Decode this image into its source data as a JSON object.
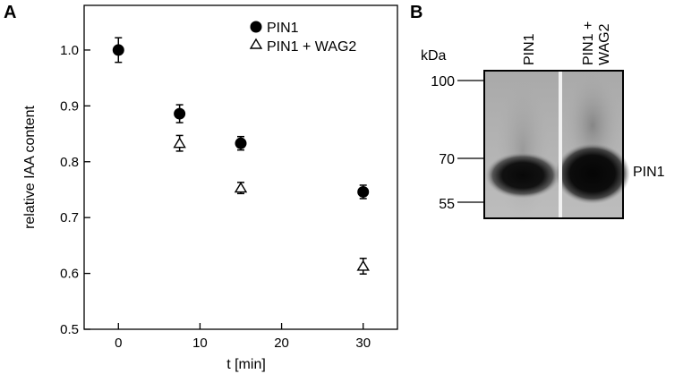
{
  "panel_a": {
    "label": "A",
    "chart_data": {
      "type": "scatter",
      "xlabel": "t [min]",
      "ylabel": "relative IAA content",
      "xlim": [
        -4.2,
        34.2
      ],
      "ylim": [
        0.5,
        1.08
      ],
      "xticks": [
        0,
        10,
        20,
        30
      ],
      "yticks": [
        0.5,
        0.6,
        0.7,
        0.8,
        0.9,
        1.0
      ],
      "ytick_labels": [
        "0.5",
        "0.6",
        "0.7",
        "0.8",
        "0.9",
        "1.0"
      ],
      "grid": false,
      "legend_position": "top-right",
      "series": [
        {
          "name": "PIN1",
          "marker": "filled-circle",
          "x": [
            0,
            7.5,
            15,
            30
          ],
          "y": [
            1.0,
            0.886,
            0.833,
            0.746
          ],
          "err": [
            0.022,
            0.016,
            0.012,
            0.012
          ]
        },
        {
          "name": "PIN1 + WAG2",
          "marker": "open-triangle",
          "x": [
            7.5,
            15,
            30
          ],
          "y": [
            0.833,
            0.753,
            0.613
          ],
          "err": [
            0.014,
            0.01,
            0.014
          ]
        }
      ]
    }
  },
  "panel_b": {
    "label": "B",
    "unit_label": "kDa",
    "markers": [
      "100",
      "70",
      "55"
    ],
    "lanes": [
      "PIN1",
      "PIN1 + WAG2"
    ],
    "band_label": "PIN1"
  }
}
